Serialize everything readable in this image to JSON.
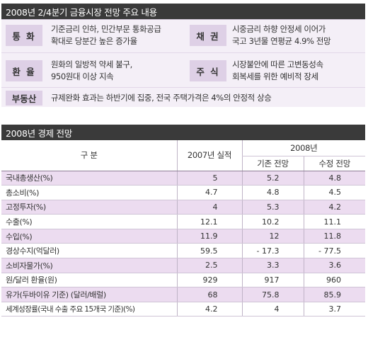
{
  "summary": {
    "title": "2008년 2/4분기 금융시장 전망 주요 내용",
    "items": [
      {
        "label": "통 화",
        "lines": [
          "기준금리 인하, 민간부문 통화공급",
          "확대로 당분간 높은 증가율"
        ]
      },
      {
        "label": "채 권",
        "lines": [
          "시중금리 하향 안정세 이어가",
          "국고 3년물 연평균 4.9% 전망"
        ]
      },
      {
        "label": "환 율",
        "lines": [
          "원화의 일방적 약세 불구,",
          "950원대 이상 지속"
        ]
      },
      {
        "label": "주 식",
        "lines": [
          "시장불안에 따른 고변동성속",
          "회복세를 위한 예비적 장세"
        ]
      },
      {
        "label": "부동산",
        "lines": [
          "규제완화 효과는 하반기에 집중, 전국 주택가격은 4%의 안정적 상승"
        ]
      }
    ]
  },
  "economy": {
    "title": "2008년 경제 전망",
    "headers": {
      "category": "구 분",
      "actual_2007": "2007년 실적",
      "year_2008": "2008년",
      "prev_forecast": "기존 전망",
      "revised_forecast": "수정 전망"
    },
    "rows": [
      {
        "name": "국내총생산(%)",
        "actual": "5",
        "prev": "5.2",
        "revised": "4.8"
      },
      {
        "name": "총소비(%)",
        "actual": "4.7",
        "prev": "4.8",
        "revised": "4.5"
      },
      {
        "name": "고정투자(%)",
        "actual": "4",
        "prev": "5.3",
        "revised": "4.2"
      },
      {
        "name": "수출(%)",
        "actual": "12.1",
        "prev": "10.2",
        "revised": "11.1"
      },
      {
        "name": "수입(%)",
        "actual": "11.9",
        "prev": "12",
        "revised": "11.8"
      },
      {
        "name": "경상수지(억달러)",
        "actual": "59.5",
        "prev": "- 17.3",
        "revised": "- 77.5"
      },
      {
        "name": "소비자물가(%)",
        "actual": "2.5",
        "prev": "3.3",
        "revised": "3.6"
      },
      {
        "name": "원/달러 환율(원)",
        "actual": "929",
        "prev": "917",
        "revised": "960"
      },
      {
        "name": "유가(두바이유 기준) (달러/배럴)",
        "actual": "68",
        "prev": "75.8",
        "revised": "85.9"
      },
      {
        "name": "세계성장률(국내 수출 주요 15개국 기준)(%)",
        "actual": "4.2",
        "prev": "4",
        "revised": "3.7"
      }
    ]
  },
  "colors": {
    "title_bar": "#3a3a3a",
    "label_bg": "#ded0e6",
    "summary_bg": "#f4eff7",
    "stripe": "#ecdcf0"
  }
}
